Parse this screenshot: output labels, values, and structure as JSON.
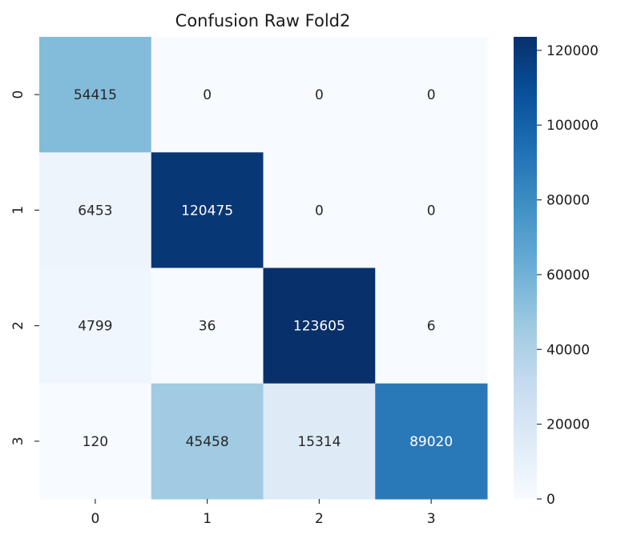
{
  "chart_data": {
    "type": "heatmap",
    "title": "Confusion Raw Fold2",
    "xlabel": "",
    "ylabel": "",
    "x_categories": [
      "0",
      "1",
      "2",
      "3"
    ],
    "y_categories": [
      "0",
      "1",
      "2",
      "3"
    ],
    "values": [
      [
        54415,
        0,
        0,
        0
      ],
      [
        6453,
        120475,
        0,
        0
      ],
      [
        4799,
        36,
        123605,
        6
      ],
      [
        120,
        45458,
        15314,
        89020
      ]
    ],
    "colormap": "Blues",
    "vmin": 0,
    "vmax": 123605,
    "colorbar_ticks": [
      0,
      20000,
      40000,
      60000,
      80000,
      100000,
      120000
    ],
    "annot": true,
    "grid": false
  }
}
